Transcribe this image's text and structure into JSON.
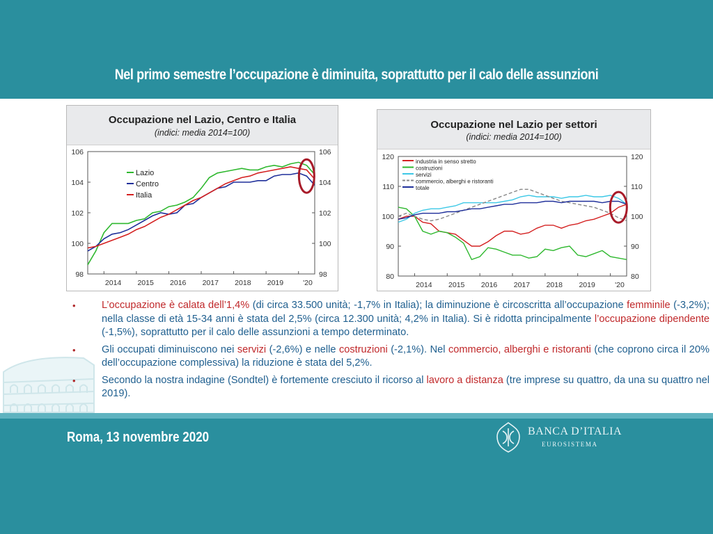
{
  "slide": {
    "title": "Nel primo semestre l’occupazione è diminuita, soprattutto per il calo delle assunzioni",
    "footer_date": "Roma, 13 novembre 2020",
    "logo_name": "BANCA D’ITALIA",
    "logo_sub": "EUROSISTEMA",
    "colors": {
      "teal": "#2a8f9e",
      "red": "#c0282a",
      "blue_text": "#1f5f8f"
    }
  },
  "bullets": [
    {
      "parts": [
        {
          "text": "L’occupazione è calata dell’1,4%",
          "color": "red"
        },
        {
          "text": " (di circa 33.500 unità; -1,7% in Italia); la diminuzione è circoscritta all’occupazione ",
          "color": "blue"
        },
        {
          "text": "femminile",
          "color": "red"
        },
        {
          "text": " (-3,2%); nella classe di età 15-34 anni è stata del 2,5% (circa 12.300 unità; 4,2% in Italia). Si è ridotta principalmente ",
          "color": "blue"
        },
        {
          "text": "l’occupazione dipendente",
          "color": "red"
        },
        {
          "text": " (-1,5%), soprattutto per il calo delle assunzioni a tempo determinato.",
          "color": "blue"
        }
      ]
    },
    {
      "parts": [
        {
          "text": "Gli occupati diminuiscono nei ",
          "color": "blue"
        },
        {
          "text": "servizi",
          "color": "red"
        },
        {
          "text": " (-2,6%) e nelle ",
          "color": "blue"
        },
        {
          "text": "costruzioni",
          "color": "red"
        },
        {
          "text": " (-2,1%). Nel ",
          "color": "blue"
        },
        {
          "text": "commercio, alberghi e ristoranti",
          "color": "red"
        },
        {
          "text": " (che coprono circa il 20% dell’occupazione complessiva) la riduzione è stata del 5,2%.",
          "color": "blue"
        }
      ]
    },
    {
      "parts": [
        {
          "text": "Secondo la nostra indagine (Sondtel) è fortemente cresciuto il ricorso al ",
          "color": "blue"
        },
        {
          "text": "lavoro a distanza",
          "color": "red"
        },
        {
          "text": " (tre imprese su quattro, da una su quattro nel 2019).",
          "color": "blue"
        }
      ]
    }
  ],
  "chart_data": [
    {
      "type": "line",
      "title": "Occupazione nel Lazio, Centro e Italia",
      "subtitle": "(indici: media 2014=100)",
      "x_tick_labels": [
        "2014",
        "2015",
        "2016",
        "2017",
        "2018",
        "2019",
        "'20"
      ],
      "x_range": [
        2013.5,
        2020.5
      ],
      "ylim": [
        98,
        106
      ],
      "y_ticks": [
        98,
        100,
        102,
        104,
        106
      ],
      "y_tick_labels": [
        "98",
        "100",
        "102",
        "104",
        "106"
      ],
      "legend_position": "top-left",
      "grid": false,
      "series": [
        {
          "name": "Lazio",
          "color": "#2eb82e",
          "x": [
            2013.5,
            2013.75,
            2014.0,
            2014.25,
            2014.5,
            2014.75,
            2015.0,
            2015.25,
            2015.5,
            2015.75,
            2016.0,
            2016.25,
            2016.5,
            2016.75,
            2017.0,
            2017.25,
            2017.5,
            2017.75,
            2018.0,
            2018.25,
            2018.5,
            2018.75,
            2019.0,
            2019.25,
            2019.5,
            2019.75,
            2020.0,
            2020.25,
            2020.5
          ],
          "y": [
            98.6,
            99.5,
            100.7,
            101.3,
            101.3,
            101.3,
            101.5,
            101.6,
            102.0,
            102.1,
            102.4,
            102.5,
            102.7,
            103.0,
            103.6,
            104.3,
            104.6,
            104.7,
            104.8,
            104.9,
            104.8,
            104.8,
            105.0,
            105.1,
            105.0,
            105.2,
            105.3,
            105.1,
            104.5
          ]
        },
        {
          "name": "Centro",
          "color": "#1f2f9a",
          "x": [
            2013.5,
            2013.75,
            2014.0,
            2014.25,
            2014.5,
            2014.75,
            2015.0,
            2015.25,
            2015.5,
            2015.75,
            2016.0,
            2016.25,
            2016.5,
            2016.75,
            2017.0,
            2017.25,
            2017.5,
            2017.75,
            2018.0,
            2018.25,
            2018.5,
            2018.75,
            2019.0,
            2019.25,
            2019.5,
            2019.75,
            2020.0,
            2020.25,
            2020.5
          ],
          "y": [
            99.5,
            99.8,
            100.3,
            100.6,
            100.7,
            100.9,
            101.2,
            101.5,
            101.8,
            102.0,
            101.9,
            102.0,
            102.5,
            102.6,
            103.0,
            103.3,
            103.6,
            103.7,
            104.0,
            104.0,
            104.0,
            104.1,
            104.1,
            104.4,
            104.5,
            104.5,
            104.6,
            104.4,
            103.8
          ]
        },
        {
          "name": "Italia",
          "color": "#d42020",
          "x": [
            2013.5,
            2013.75,
            2014.0,
            2014.25,
            2014.5,
            2014.75,
            2015.0,
            2015.25,
            2015.5,
            2015.75,
            2016.0,
            2016.25,
            2016.5,
            2016.75,
            2017.0,
            2017.25,
            2017.5,
            2017.75,
            2018.0,
            2018.25,
            2018.5,
            2018.75,
            2019.0,
            2019.25,
            2019.5,
            2019.75,
            2020.0,
            2020.25,
            2020.5
          ],
          "y": [
            99.7,
            99.8,
            100.0,
            100.2,
            100.4,
            100.6,
            100.9,
            101.1,
            101.4,
            101.7,
            101.9,
            102.2,
            102.5,
            102.8,
            103.0,
            103.3,
            103.6,
            103.9,
            104.1,
            104.3,
            104.4,
            104.6,
            104.7,
            104.8,
            104.9,
            105.0,
            104.9,
            104.8,
            104.2
          ]
        }
      ]
    },
    {
      "type": "line",
      "title": "Occupazione nel Lazio per settori",
      "subtitle": "(indici: media 2014=100)",
      "x_tick_labels": [
        "2014",
        "2015",
        "2016",
        "2017",
        "2018",
        "2019",
        "'20"
      ],
      "x_range": [
        2013.5,
        2020.5
      ],
      "ylim": [
        80,
        120
      ],
      "y_ticks": [
        80,
        90,
        100,
        110,
        120
      ],
      "y_tick_labels": [
        "80",
        "90",
        "100",
        "110",
        "120"
      ],
      "legend_position": "top-left",
      "grid": false,
      "series": [
        {
          "name": "industria in senso stretto",
          "color": "#d42020",
          "dash": false,
          "x": [
            2013.5,
            2013.75,
            2014.0,
            2014.25,
            2014.5,
            2014.75,
            2015.0,
            2015.25,
            2015.5,
            2015.75,
            2016.0,
            2016.25,
            2016.5,
            2016.75,
            2017.0,
            2017.25,
            2017.5,
            2017.75,
            2018.0,
            2018.25,
            2018.5,
            2018.75,
            2019.0,
            2019.25,
            2019.5,
            2019.75,
            2020.0,
            2020.25,
            2020.5
          ],
          "y": [
            99,
            100,
            100,
            98,
            97.5,
            95,
            94.5,
            94,
            92,
            90,
            90,
            91.5,
            93.5,
            95,
            95,
            94,
            94.5,
            96,
            97,
            97,
            96,
            97,
            97.5,
            98.5,
            99,
            100,
            101,
            103,
            104
          ]
        },
        {
          "name": "costruzioni",
          "color": "#2eb82e",
          "dash": false,
          "x": [
            2013.5,
            2013.75,
            2014.0,
            2014.25,
            2014.5,
            2014.75,
            2015.0,
            2015.25,
            2015.5,
            2015.75,
            2016.0,
            2016.25,
            2016.5,
            2016.75,
            2017.0,
            2017.25,
            2017.5,
            2017.75,
            2018.0,
            2018.25,
            2018.5,
            2018.75,
            2019.0,
            2019.25,
            2019.5,
            2019.75,
            2020.0,
            2020.25,
            2020.5
          ],
          "y": [
            103,
            102.5,
            100,
            95,
            94,
            95,
            94.5,
            93,
            91,
            85.5,
            86.5,
            89.5,
            89,
            88,
            87,
            87,
            86,
            86.5,
            89,
            88.5,
            89.5,
            90,
            87,
            86.5,
            87.5,
            88.5,
            86.5,
            86,
            85.5
          ]
        },
        {
          "name": "servizi",
          "color": "#3cc8e6",
          "dash": false,
          "x": [
            2013.5,
            2013.75,
            2014.0,
            2014.25,
            2014.5,
            2014.75,
            2015.0,
            2015.25,
            2015.5,
            2015.75,
            2016.0,
            2016.25,
            2016.5,
            2016.75,
            2017.0,
            2017.25,
            2017.5,
            2017.75,
            2018.0,
            2018.25,
            2018.5,
            2018.75,
            2019.0,
            2019.25,
            2019.5,
            2019.75,
            2020.0,
            2020.25,
            2020.5
          ],
          "y": [
            98,
            99,
            101,
            102,
            102.5,
            102.5,
            103,
            103.5,
            104.5,
            104.5,
            104.5,
            104.5,
            104.5,
            105,
            105.5,
            106.5,
            107,
            106.5,
            106.5,
            106.5,
            106,
            106.5,
            106.5,
            107,
            106.5,
            106.5,
            107,
            106,
            104
          ]
        },
        {
          "name": "commercio, alberghi e ristoranti",
          "color": "#888888",
          "dash": true,
          "x": [
            2013.5,
            2013.75,
            2014.0,
            2014.25,
            2014.5,
            2014.75,
            2015.0,
            2015.25,
            2015.5,
            2015.75,
            2016.0,
            2016.25,
            2016.5,
            2016.75,
            2017.0,
            2017.25,
            2017.5,
            2017.75,
            2018.0,
            2018.25,
            2018.5,
            2018.75,
            2019.0,
            2019.25,
            2019.5,
            2019.75,
            2020.0,
            2020.25,
            2020.5
          ],
          "y": [
            100,
            101,
            100,
            99,
            98.5,
            99,
            100,
            101,
            102,
            103,
            104,
            105,
            106,
            107,
            108,
            109,
            109,
            108,
            107,
            106,
            105,
            104.5,
            104,
            103.5,
            103,
            102,
            101,
            99.5,
            98.5
          ]
        },
        {
          "name": "totale",
          "color": "#1f2f9a",
          "dash": false,
          "x": [
            2013.5,
            2013.75,
            2014.0,
            2014.25,
            2014.5,
            2014.75,
            2015.0,
            2015.25,
            2015.5,
            2015.75,
            2016.0,
            2016.25,
            2016.5,
            2016.75,
            2017.0,
            2017.25,
            2017.5,
            2017.75,
            2018.0,
            2018.25,
            2018.5,
            2018.75,
            2019.0,
            2019.25,
            2019.5,
            2019.75,
            2020.0,
            2020.25,
            2020.5
          ],
          "y": [
            99,
            99.5,
            100.5,
            101,
            101,
            101,
            101.5,
            101.5,
            102,
            102.5,
            102.5,
            103,
            103.5,
            104,
            104,
            104.5,
            104.5,
            104.5,
            105,
            105,
            104.5,
            105,
            105,
            105,
            105,
            104.5,
            105,
            105,
            104
          ]
        }
      ]
    }
  ]
}
